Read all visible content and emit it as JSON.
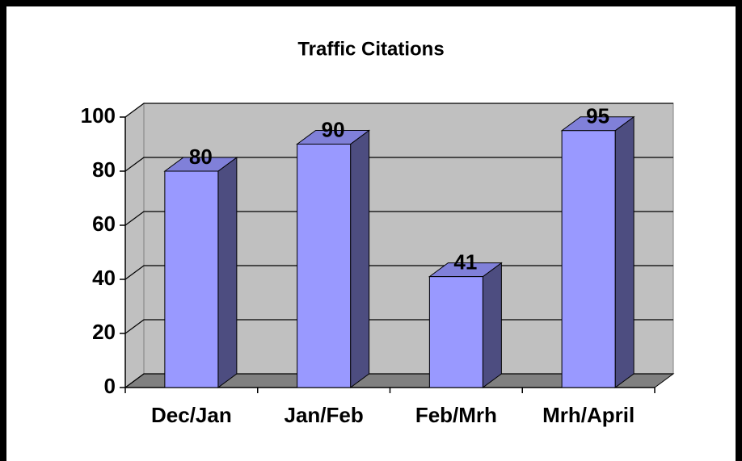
{
  "chart_data": {
    "type": "bar",
    "title": "Traffic Citations",
    "categories": [
      "Dec/Jan",
      "Jan/Feb",
      "Feb/Mrh",
      "Mrh/April"
    ],
    "values": [
      80,
      90,
      41,
      95
    ],
    "color": "#9999ff",
    "ylim": [
      0,
      100
    ],
    "yticks": [
      0,
      20,
      40,
      60,
      80,
      100
    ],
    "grid": true
  }
}
